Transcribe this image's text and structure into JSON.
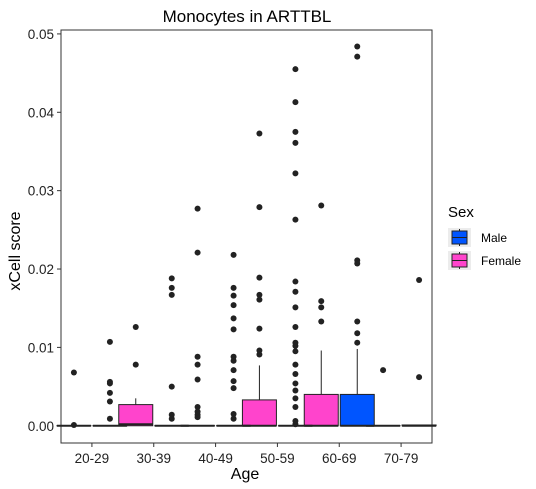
{
  "chart_data": {
    "type": "box",
    "title": "Monocytes in ARTTBL",
    "xlabel": "Age",
    "ylabel": "xCell score",
    "categories": [
      "20-29",
      "30-39",
      "40-49",
      "50-59",
      "60-69",
      "70-79"
    ],
    "ylim": [
      -0.0022,
      0.0505
    ],
    "yticks": [
      0,
      0.01,
      0.02,
      0.03,
      0.04,
      0.05
    ],
    "ytick_labels": [
      "0.00",
      "0.01",
      "0.02",
      "0.03",
      "0.04",
      "0.05"
    ],
    "grid": false,
    "legend": {
      "title": "Sex",
      "position": "right",
      "entries": [
        {
          "name": "Male",
          "color": "#0055ff"
        },
        {
          "name": "Female",
          "color": "#ff44cc"
        }
      ]
    },
    "series": [
      {
        "name": "Female",
        "color": "#ff44cc",
        "boxes": [
          {
            "category": "20-29",
            "q1": 0,
            "median": 0,
            "q3": 0,
            "whisker_low": 0,
            "whisker_high": 0,
            "outliers": [
              0.0068,
              0.0001
            ]
          },
          {
            "category": "30-39",
            "q1": 0,
            "median": 0.0002,
            "q3": 0.0027,
            "whisker_low": 0,
            "whisker_high": 0.0035,
            "outliers": [
              0.0126,
              0.0078
            ]
          },
          {
            "category": "40-49",
            "q1": 0,
            "median": 0,
            "q3": 0,
            "whisker_low": 0,
            "whisker_high": 0,
            "outliers": [
              0.0277,
              0.0221,
              0.0088,
              0.0078,
              0.0059,
              0.0024,
              0.0018,
              0.0014,
              0.0011
            ]
          },
          {
            "category": "50-59",
            "q1": 0,
            "median": 0,
            "q3": 0.0033,
            "whisker_low": 0,
            "whisker_high": 0.0077,
            "outliers": [
              0.0373,
              0.0279,
              0.0189,
              0.0167,
              0.0161,
              0.0124,
              0.0096,
              0.0091
            ]
          },
          {
            "category": "60-69",
            "q1": 0,
            "median": 0,
            "q3": 0.004,
            "whisker_low": 0,
            "whisker_high": 0.0096,
            "outliers": [
              0.0281,
              0.0159,
              0.0151,
              0.0133
            ]
          },
          {
            "category": "70-79",
            "q1": 0,
            "median": 0,
            "q3": 0,
            "whisker_low": 0,
            "whisker_high": 0,
            "outliers": [
              0.0071
            ]
          }
        ]
      },
      {
        "name": "Male",
        "color": "#0055ff",
        "boxes": [
          {
            "category": "20-29",
            "q1": 0,
            "median": 0,
            "q3": 0,
            "whisker_low": 0,
            "whisker_high": 0,
            "outliers": [
              0.0107,
              0.0056,
              0.0054,
              0.0042,
              0.0031,
              0.0009
            ]
          },
          {
            "category": "30-39",
            "q1": 0,
            "median": 0,
            "q3": 0,
            "whisker_low": 0,
            "whisker_high": 0,
            "outliers": [
              0.0188,
              0.0176,
              0.0167,
              0.005,
              0.0014,
              0.0009
            ]
          },
          {
            "category": "40-49",
            "q1": 0,
            "median": 0,
            "q3": 0,
            "whisker_low": 0,
            "whisker_high": 0,
            "outliers": [
              0.0218,
              0.0176,
              0.0166,
              0.0154,
              0.0137,
              0.0123,
              0.0088,
              0.0083,
              0.0071,
              0.0057,
              0.0048,
              0.0015,
              0.0009
            ]
          },
          {
            "category": "50-59",
            "q1": 0,
            "median": 0,
            "q3": 0,
            "whisker_low": 0,
            "whisker_high": 0,
            "outliers": [
              0.0455,
              0.0413,
              0.0375,
              0.0361,
              0.0322,
              0.0263,
              0.0184,
              0.0171,
              0.0151,
              0.0126,
              0.0106,
              0.0102,
              0.0095,
              0.0078,
              0.0066,
              0.0054,
              0.0045,
              0.0035,
              0.0024,
              0.0006,
              0.0002
            ]
          },
          {
            "category": "60-69",
            "q1": 0,
            "median": 0,
            "q3": 0.004,
            "whisker_low": 0,
            "whisker_high": 0.0098,
            "outliers": [
              0.0484,
              0.0471,
              0.0211,
              0.0207,
              0.0133,
              0.0118,
              0.0106
            ]
          },
          {
            "category": "70-79",
            "q1": 0,
            "median": 0,
            "q3": 0.0001,
            "whisker_low": 0,
            "whisker_high": 0.0001,
            "outliers": [
              0.0186,
              0.0062
            ]
          }
        ]
      }
    ]
  }
}
